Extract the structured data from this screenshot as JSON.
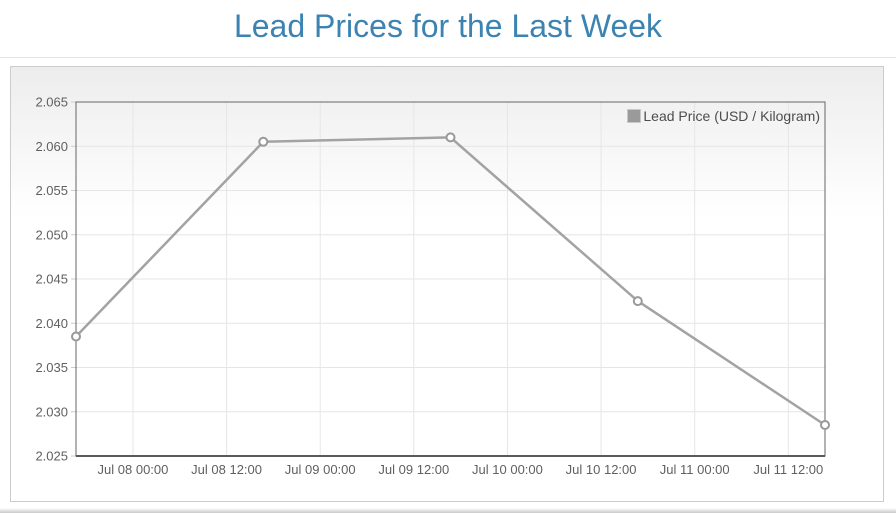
{
  "page": {
    "title": "Lead Prices for the Last Week"
  },
  "chart_data": {
    "type": "line",
    "title": "Lead Prices for the Last Week",
    "legend": {
      "position": "top-right",
      "items": [
        "Lead Price (USD / Kilogram)"
      ]
    },
    "series": [
      {
        "name": "Lead Price (USD / Kilogram)",
        "color": "#a3a3a3",
        "line_width": 2.5,
        "marker": {
          "shape": "circle",
          "radius": 4,
          "fill": "#ffffff",
          "stroke": "#999999"
        },
        "points": [
          {
            "x_hours": -7.3,
            "value": 2.0385
          },
          {
            "x_hours": 16.7,
            "value": 2.0605
          },
          {
            "x_hours": 40.7,
            "value": 2.061
          },
          {
            "x_hours": 64.7,
            "value": 2.0425
          },
          {
            "x_hours": 88.7,
            "value": 2.0285
          }
        ]
      }
    ],
    "x_axis": {
      "hours_origin_label": "Jul 08 00:00",
      "range_hours": [
        -7.3,
        88.7
      ],
      "ticks": [
        {
          "hours": 0,
          "label": "Jul 08 00:00"
        },
        {
          "hours": 12,
          "label": "Jul 08 12:00"
        },
        {
          "hours": 24,
          "label": "Jul 09 00:00"
        },
        {
          "hours": 36,
          "label": "Jul 09 12:00"
        },
        {
          "hours": 48,
          "label": "Jul 10 00:00"
        },
        {
          "hours": 60,
          "label": "Jul 10 12:00"
        },
        {
          "hours": 72,
          "label": "Jul 11 00:00"
        },
        {
          "hours": 84,
          "label": "Jul 11 12:00"
        }
      ]
    },
    "y_axis": {
      "range": [
        2.025,
        2.065
      ],
      "tick_step": 0.005,
      "tick_labels": [
        "2.025",
        "2.030",
        "2.035",
        "2.040",
        "2.045",
        "2.050",
        "2.055",
        "2.060",
        "2.065"
      ]
    },
    "grid": true,
    "colors": {
      "grid": "#e6e6e6",
      "plot_border": "#666666",
      "bottom_axis": "#5a5a5a",
      "axis_label": "#606060",
      "tick_mark": "#cccccc",
      "legend_text": "#4d4d4d",
      "legend_marker_fill": "#9a9a9a",
      "legend_marker_border": "#c8c8c8",
      "title": "#3c83b2"
    }
  }
}
